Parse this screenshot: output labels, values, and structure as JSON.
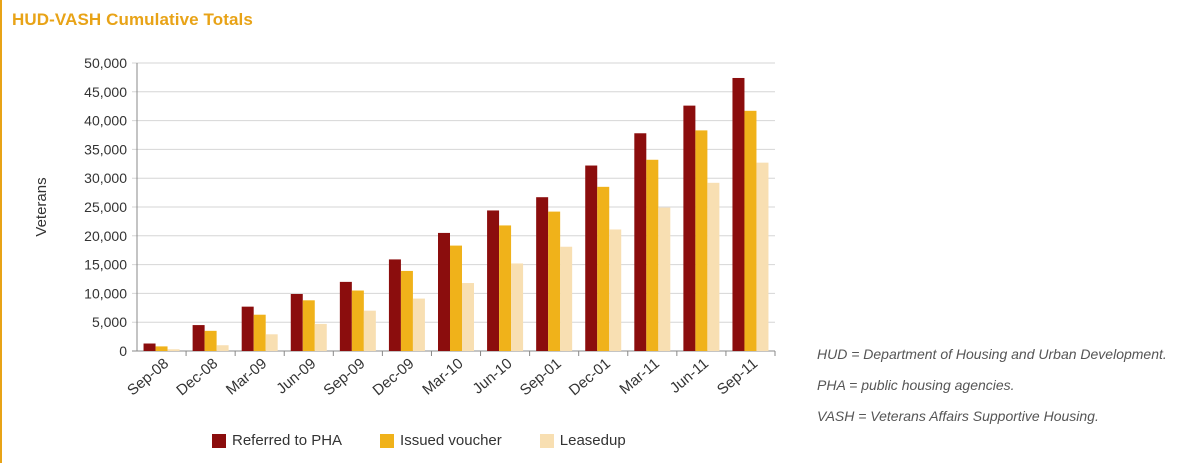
{
  "colors": {
    "accent": "#e8a317",
    "referred": "#8b0d0d",
    "issued": "#f0b21a",
    "leasedup": "#f8dfb2",
    "axis": "#888888"
  },
  "notes": [
    "HUD = Department of Housing and Urban Development.",
    "PHA = public housing agencies.",
    "VASH = Veterans Affairs Supportive Housing."
  ],
  "chart_data": {
    "type": "bar",
    "title": "HUD-VASH Cumulative Totals",
    "xlabel": "",
    "ylabel": "Veterans",
    "ylim": [
      0,
      50000
    ],
    "yticks": [
      0,
      5000,
      10000,
      15000,
      20000,
      25000,
      30000,
      35000,
      40000,
      45000,
      50000
    ],
    "ytick_labels": [
      "0",
      "5,000",
      "10,000",
      "15,000",
      "20,000",
      "25,000",
      "30,000",
      "35,000",
      "40,000",
      "45,000",
      "50,000"
    ],
    "grid": true,
    "legend_position": "bottom",
    "categories": [
      "Sep-08",
      "Dec-08",
      "Mar-09",
      "Jun-09",
      "Sep-09",
      "Dec-09",
      "Mar-10",
      "Jun-10",
      "Sep-01",
      "Dec-01",
      "Mar-11",
      "Jun-11",
      "Sep-11"
    ],
    "series": [
      {
        "name": "Referred to PHA",
        "values": [
          1300,
          4500,
          7700,
          9900,
          12000,
          15900,
          20500,
          24400,
          26700,
          32200,
          37800,
          42600,
          47400
        ]
      },
      {
        "name": "Issued voucher",
        "values": [
          800,
          3500,
          6300,
          8800,
          10500,
          13900,
          18300,
          21800,
          24200,
          28500,
          33200,
          38300,
          41700
        ]
      },
      {
        "name": "Leasedup",
        "values": [
          300,
          1000,
          2900,
          4700,
          7000,
          9100,
          11800,
          15200,
          18100,
          21100,
          24900,
          29200,
          32700
        ]
      }
    ]
  }
}
